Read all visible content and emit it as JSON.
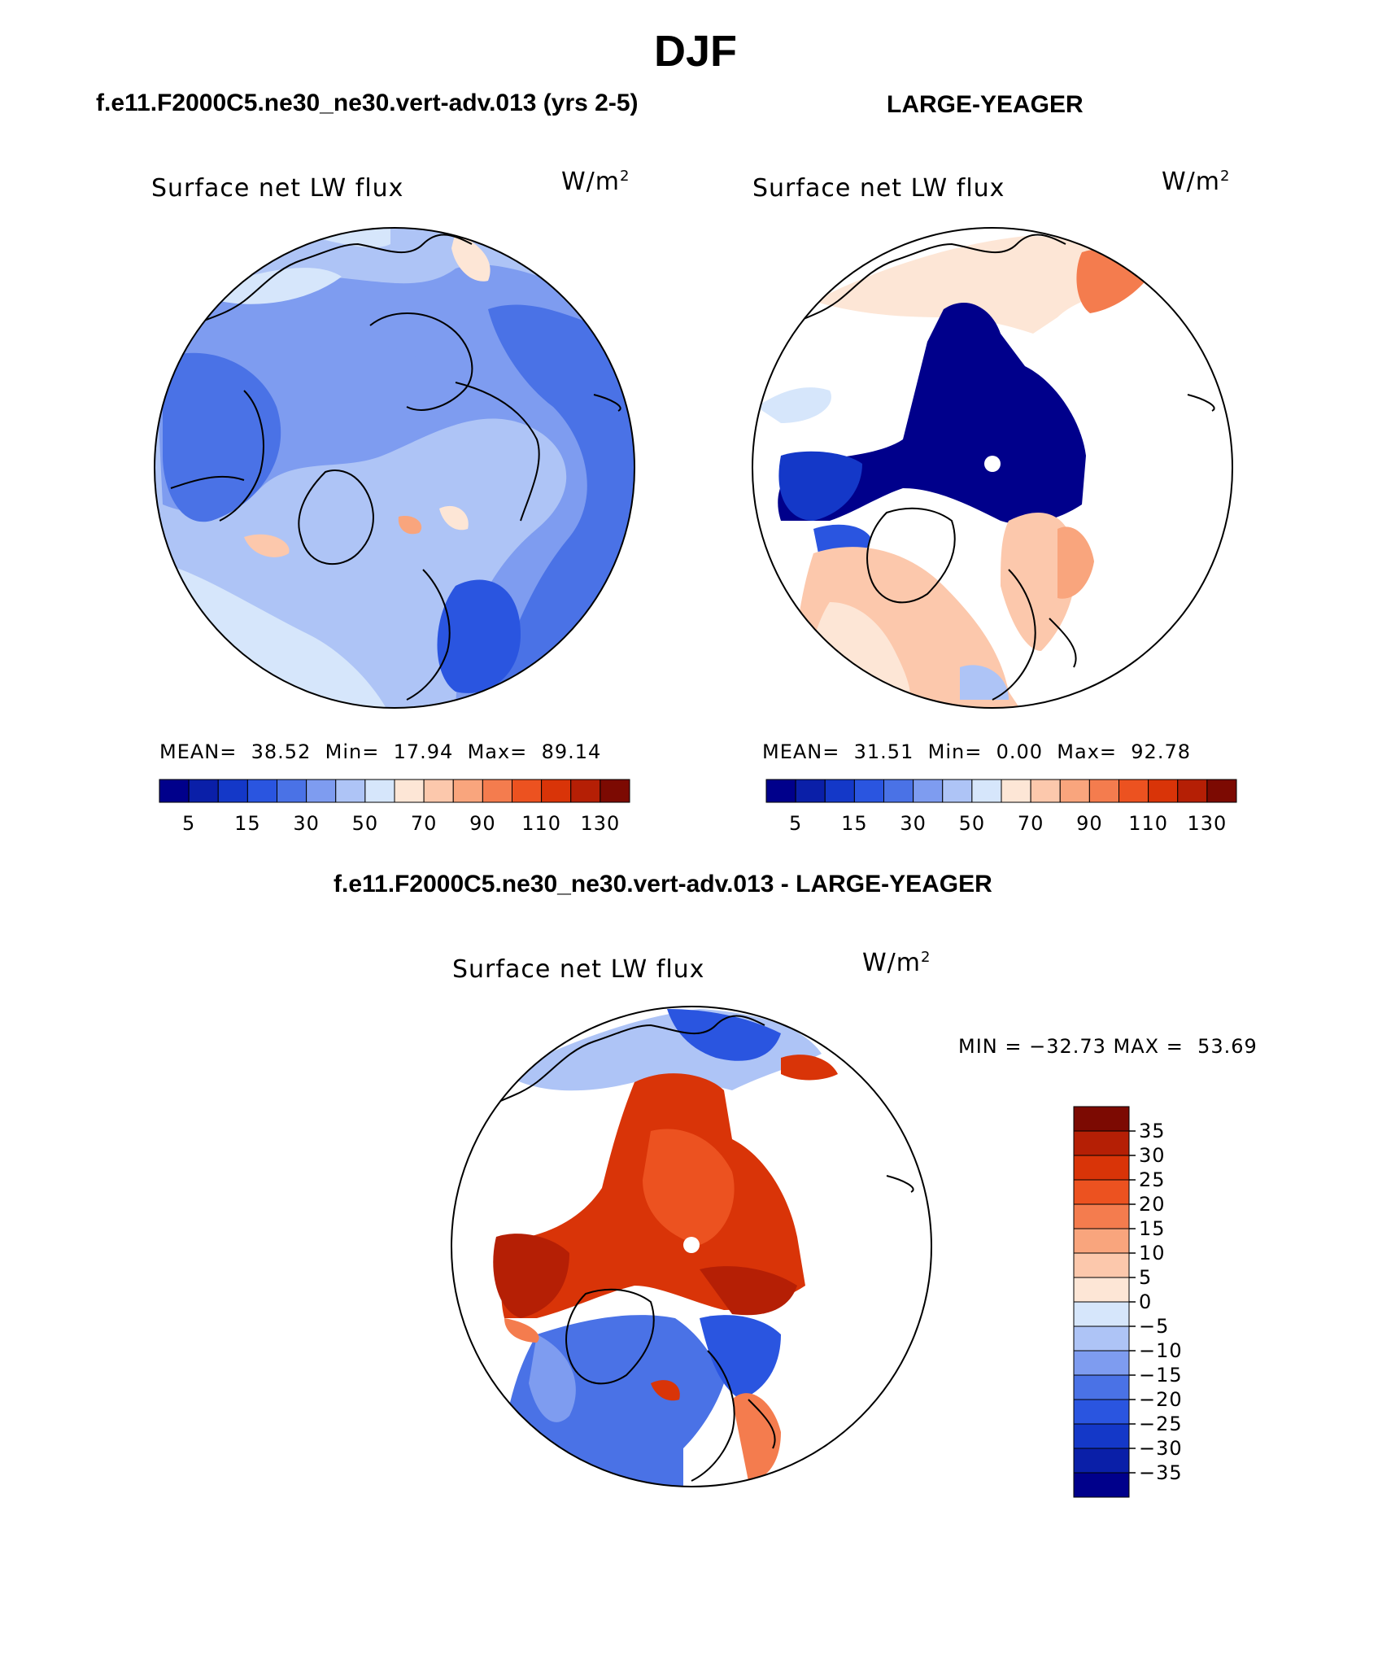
{
  "figure": {
    "title": "DJF",
    "bottom_subtitle": "f.e11.F2000C5.ne30_ne30.vert-adv.013 - LARGE-YEAGER"
  },
  "panels": [
    {
      "subtitle": "f.e11.F2000C5.ne30_ne30.vert-adv.013 (yrs 2-5)",
      "plot_title": "Surface net LW flux",
      "units_base": "W/m",
      "units_exp": "2",
      "stats": {
        "mean_label": "MEAN=",
        "mean": "38.52",
        "min_label": "Min=",
        "min": "17.94",
        "max_label": "Max=",
        "max": "89.14"
      }
    },
    {
      "subtitle": "LARGE-YEAGER",
      "plot_title": "Surface net LW flux",
      "units_base": "W/m",
      "units_exp": "2",
      "stats": {
        "mean_label": "MEAN=",
        "mean": "31.51",
        "min_label": "Min=",
        "min": "0.00",
        "max_label": "Max=",
        "max": "92.78"
      }
    },
    {
      "plot_title": "Surface net LW flux",
      "units_base": "W/m",
      "units_exp": "2",
      "minmax": "MIN = −32.73 MAX =  53.69"
    }
  ],
  "colorbar_top": {
    "colors": [
      "#00008b",
      "#0a1fa8",
      "#1438c8",
      "#2a55e0",
      "#4a72e6",
      "#7e9cf0",
      "#aec4f6",
      "#d6e6fb",
      "#fde6d6",
      "#fcc8ac",
      "#f9a57d",
      "#f47c4e",
      "#ec5220",
      "#d93408",
      "#b51f05",
      "#7c0a02"
    ],
    "labels": [
      "5",
      "15",
      "30",
      "50",
      "70",
      "90",
      "110",
      "130"
    ]
  },
  "colorbar_diff": {
    "colors": [
      "#7c0a02",
      "#b51f05",
      "#d93408",
      "#ec5220",
      "#f47c4e",
      "#f9a57d",
      "#fcc8ac",
      "#fde6d6",
      "#d6e6fb",
      "#aec4f6",
      "#7e9cf0",
      "#4a72e6",
      "#2a55e0",
      "#1438c8",
      "#0a1fa8",
      "#00008b"
    ],
    "labels": [
      "35",
      "30",
      "25",
      "20",
      "15",
      "10",
      "5",
      "0",
      "−5",
      "−10",
      "−15",
      "−20",
      "−25",
      "−30",
      "−35"
    ]
  },
  "icons": {
    "north_pole_marker": "white-dot-icon"
  }
}
